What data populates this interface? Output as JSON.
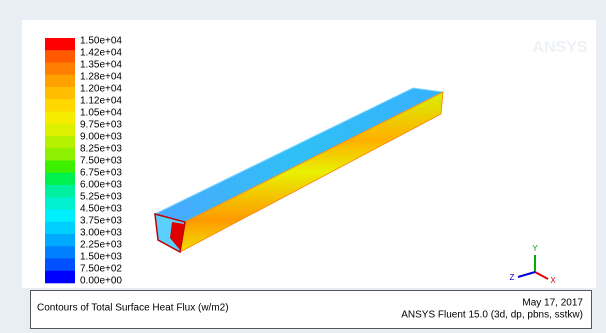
{
  "legend": {
    "labels": [
      "1.50e+04",
      "1.42e+04",
      "1.35e+04",
      "1.28e+04",
      "1.20e+04",
      "1.12e+04",
      "1.05e+04",
      "9.75e+03",
      "9.00e+03",
      "8.25e+03",
      "7.50e+03",
      "6.75e+03",
      "6.00e+03",
      "5.25e+03",
      "4.50e+03",
      "3.75e+03",
      "3.00e+03",
      "2.25e+03",
      "1.50e+03",
      "7.50e+02",
      "0.00e+00"
    ],
    "colors": [
      "#ff0000",
      "#ff5a00",
      "#ff8000",
      "#ffa200",
      "#ffbe00",
      "#ffd800",
      "#f5ec00",
      "#dcf000",
      "#b4f000",
      "#8cf000",
      "#3cf000",
      "#00f050",
      "#00f0a0",
      "#00f0d0",
      "#00f0ff",
      "#00d0ff",
      "#00aaff",
      "#0080ff",
      "#0050ff",
      "#0000ff"
    ]
  },
  "logo": "ANSYS",
  "axes_triad": {
    "y": "Y",
    "z": "Z",
    "x": "X"
  },
  "footer": {
    "title": "Contours of Total Surface Heat Flux (w/m2)",
    "date": "May 17, 2017",
    "version": "ANSYS Fluent 15.0 (3d, dp, pbns, sstkw)"
  }
}
